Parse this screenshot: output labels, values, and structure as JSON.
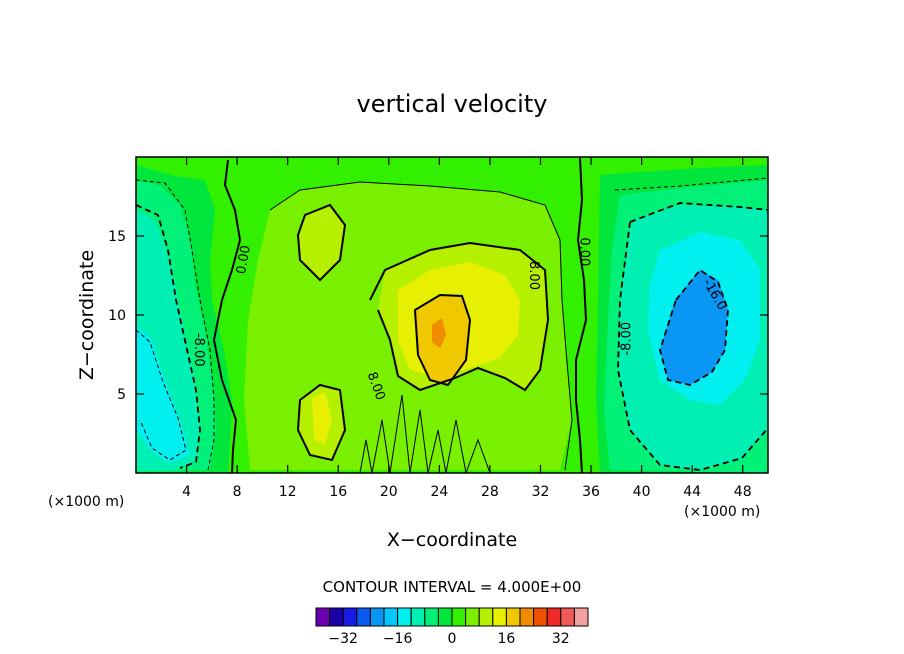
{
  "chart_data": {
    "type": "contour",
    "title": "vertical velocity",
    "xlabel": "X−coordinate",
    "ylabel": "Z−coordinate",
    "x_unit_left": "(×1000 m)",
    "x_unit_right": "(×1000 m)",
    "xlim": [
      0,
      50
    ],
    "ylim": [
      0,
      20
    ],
    "x_ticks": [
      4,
      8,
      12,
      16,
      20,
      24,
      28,
      32,
      36,
      40,
      44,
      48
    ],
    "y_ticks": [
      5,
      10,
      15
    ],
    "x_tick_labels": [
      "4",
      "8",
      "12",
      "16",
      "20",
      "24",
      "28",
      "32",
      "36",
      "40",
      "44",
      "48"
    ],
    "y_tick_labels": [
      "5",
      "10",
      "15"
    ],
    "contour_interval_text": "CONTOUR INTERVAL = 4.000E+00",
    "contour_interval": 4.0,
    "contour_labels": [
      {
        "text": "0.00",
        "x": 8.5,
        "y": 13.5,
        "rotate": -80
      },
      {
        "text": "0.00",
        "x": 35.5,
        "y": 14.0,
        "rotate": 90
      },
      {
        "text": "8.00",
        "x": 31.5,
        "y": 12.5,
        "rotate": 90
      },
      {
        "text": "8.00",
        "x": 19.0,
        "y": 5.5,
        "rotate": 70
      },
      {
        "text": "-8.00",
        "x": 5.0,
        "y": 7.8,
        "rotate": 90
      },
      {
        "text": "-8.00",
        "x": 38.8,
        "y": 8.5,
        "rotate": -90
      },
      {
        "text": "-16.0",
        "x": 45.8,
        "y": 11.3,
        "rotate": 60
      }
    ],
    "colorbar": {
      "levels": [
        -36,
        -32,
        -28,
        -24,
        -20,
        -16,
        -12,
        -8,
        -4,
        0,
        4,
        8,
        12,
        16,
        20,
        24,
        28,
        32,
        36
      ],
      "colors": [
        "#6a00b0",
        "#1c00aa",
        "#1a1ae6",
        "#0a5af0",
        "#0a96f5",
        "#00c8fa",
        "#00f0f0",
        "#00f0b4",
        "#00f078",
        "#00e63c",
        "#32f000",
        "#78f000",
        "#b4f000",
        "#e6f000",
        "#f0c800",
        "#f08c00",
        "#f05000",
        "#f02828",
        "#f05a5a",
        "#f5a0a0"
      ],
      "tick_values": [
        -32,
        -16,
        0,
        16,
        32
      ],
      "tick_labels": [
        "−32",
        "−16",
        "0",
        "16",
        "32"
      ]
    }
  }
}
